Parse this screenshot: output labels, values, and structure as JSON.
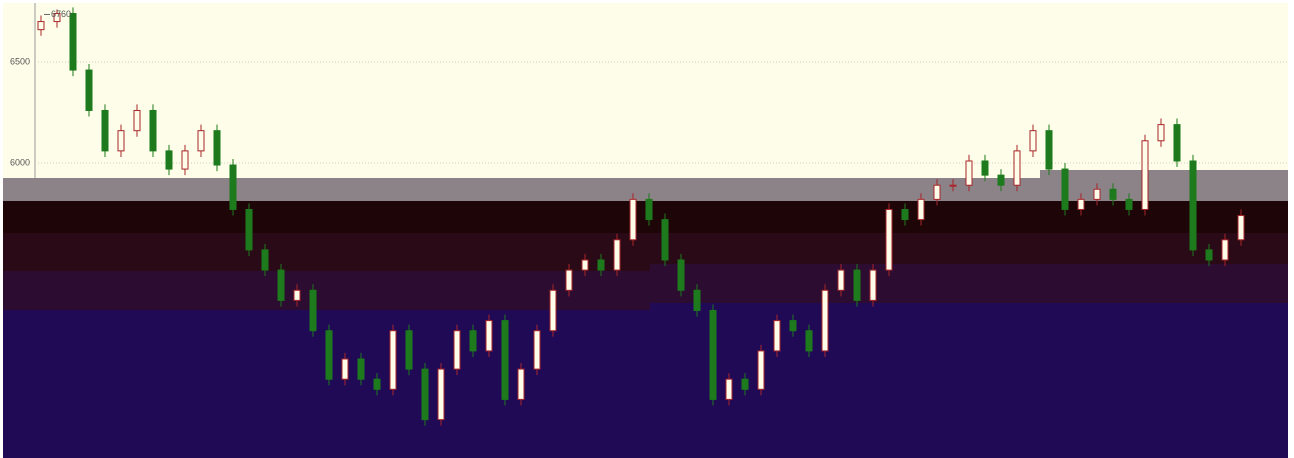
{
  "chart_data": {
    "type": "candlestick",
    "series": [
      {
        "open": [
          6660,
          6700,
          6740,
          6460,
          6260,
          6060,
          6160,
          6260,
          6060,
          5970,
          6060,
          6160,
          5990,
          5770,
          5570,
          5470,
          5320,
          5370,
          5170,
          4930,
          5030,
          4930,
          4880,
          5170,
          4980,
          4730,
          4980,
          5170,
          5070,
          5220,
          4830,
          4980,
          5170,
          5370,
          5470,
          5520,
          5470,
          5620,
          5820,
          5720,
          5520,
          5370,
          5270,
          4830,
          4930,
          4880,
          5070,
          5220,
          5170,
          5070,
          5370,
          5470,
          5320,
          5470,
          5770,
          5720,
          5820,
          5890,
          5890,
          6010,
          5940,
          5890,
          6060,
          6160,
          5970,
          5770,
          5820,
          5870,
          5820,
          5770,
          6110,
          6190,
          6010,
          5570,
          5520,
          5620
        ],
        "high": [
          6730,
          6760,
          6770,
          6490,
          6290,
          6190,
          6290,
          6290,
          6090,
          6090,
          6190,
          6190,
          6020,
          5800,
          5600,
          5500,
          5400,
          5400,
          5200,
          5060,
          5060,
          4960,
          5200,
          5200,
          5010,
          5010,
          5200,
          5200,
          5250,
          5250,
          5010,
          5200,
          5400,
          5500,
          5550,
          5550,
          5650,
          5850,
          5850,
          5750,
          5550,
          5400,
          5300,
          4960,
          4960,
          5100,
          5250,
          5250,
          5200,
          5400,
          5500,
          5500,
          5500,
          5800,
          5800,
          5850,
          5920,
          5920,
          6040,
          6040,
          5970,
          6090,
          6190,
          6190,
          6000,
          5850,
          5900,
          5900,
          5850,
          6140,
          6220,
          6220,
          6040,
          5600,
          5650,
          5770
        ],
        "low": [
          6630,
          6670,
          6430,
          6230,
          6030,
          6030,
          6130,
          6030,
          5940,
          5940,
          6030,
          5960,
          5740,
          5540,
          5440,
          5290,
          5290,
          5140,
          4900,
          4900,
          4900,
          4850,
          4850,
          4950,
          4700,
          4700,
          4950,
          5040,
          5040,
          4800,
          4800,
          4950,
          5140,
          5340,
          5440,
          5440,
          5440,
          5590,
          5690,
          5490,
          5340,
          5240,
          4800,
          4800,
          4850,
          4850,
          5040,
          5140,
          5040,
          5040,
          5340,
          5290,
          5290,
          5440,
          5690,
          5690,
          5790,
          5860,
          5860,
          5910,
          5860,
          5860,
          6030,
          5940,
          5740,
          5740,
          5790,
          5790,
          5740,
          5740,
          6080,
          5980,
          5540,
          5490,
          5490,
          5590
        ],
        "close": [
          6700,
          6740,
          6460,
          6260,
          6060,
          6160,
          6260,
          6060,
          5970,
          6060,
          6160,
          5990,
          5770,
          5570,
          5470,
          5320,
          5370,
          5170,
          4930,
          5030,
          4930,
          4880,
          5170,
          4980,
          4730,
          4980,
          5170,
          5070,
          5220,
          4830,
          4980,
          5170,
          5370,
          5470,
          5520,
          5470,
          5620,
          5820,
          5720,
          5520,
          5370,
          5270,
          4830,
          4930,
          4880,
          5070,
          5220,
          5170,
          5070,
          5370,
          5470,
          5320,
          5470,
          5770,
          5720,
          5820,
          5890,
          5890,
          6010,
          5940,
          5890,
          6060,
          6160,
          5970,
          5770,
          5820,
          5870,
          5820,
          5770,
          6110,
          6190,
          6010,
          5570,
          5520,
          5620,
          5740
        ]
      }
    ],
    "up_color": "#a8262a",
    "down_color": "#1d7a1d",
    "max_annotation": 6760,
    "ylim": [
      4540,
      6782
    ],
    "yticks": [
      6000,
      6500
    ],
    "grid": true
  }
}
